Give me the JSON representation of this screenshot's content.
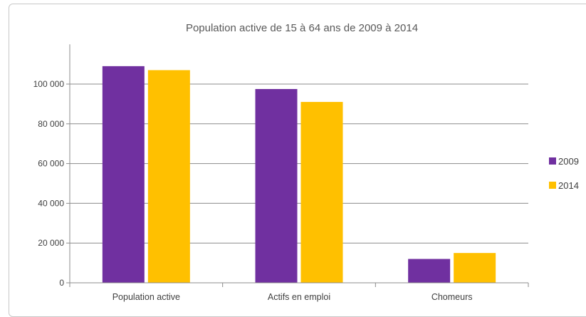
{
  "chart_data": {
    "type": "bar",
    "title": "Population active de 15 à 64 ans de 2009 à 2014",
    "categories": [
      "Population active",
      "Actifs en emploi",
      "Chomeurs"
    ],
    "series": [
      {
        "name": "2009",
        "color": "#7030A0",
        "values": [
          109000,
          97500,
          12000
        ]
      },
      {
        "name": "2014",
        "color": "#FFC000",
        "values": [
          107000,
          91000,
          15000
        ]
      }
    ],
    "y_ticks": [
      "0",
      "20 000",
      "40 000",
      "60 000",
      "80 000",
      "100 000"
    ],
    "y_tick_values": [
      0,
      20000,
      40000,
      60000,
      80000,
      100000
    ],
    "ylim": [
      0,
      120000
    ],
    "grid": true,
    "legend_position": "right"
  }
}
